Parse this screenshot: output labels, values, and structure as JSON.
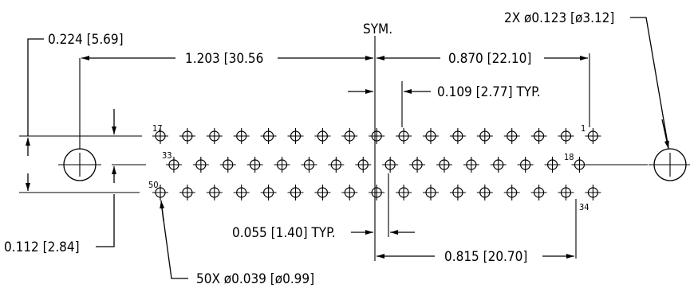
{
  "drawing": {
    "dimensions": {
      "offset_top": "0.224 [5.69]",
      "pitch_center_left": "1.203 [30.56",
      "symmetry": "SYM.",
      "half_row_width": "0.870 [22.10]",
      "pin_pitch": "0.109 [2.77] TYP.",
      "mount_hole": "2X ø0.123 [ø3.12]",
      "offset_bottom": "0.112 [2.84]",
      "row_stagger": "0.055 [1.40] TYP.",
      "row3_half_width": "0.815 [20.70]",
      "pin_callout": "50X ø0.039 [ø0.99]"
    },
    "pin_labels": {
      "top_left": "17",
      "top_right": "1",
      "mid_left": "33",
      "mid_right": "18",
      "bottom_left": "50",
      "bottom_right": "34"
    },
    "rows": {
      "top": 17,
      "middle": 16,
      "bottom": 17
    }
  }
}
